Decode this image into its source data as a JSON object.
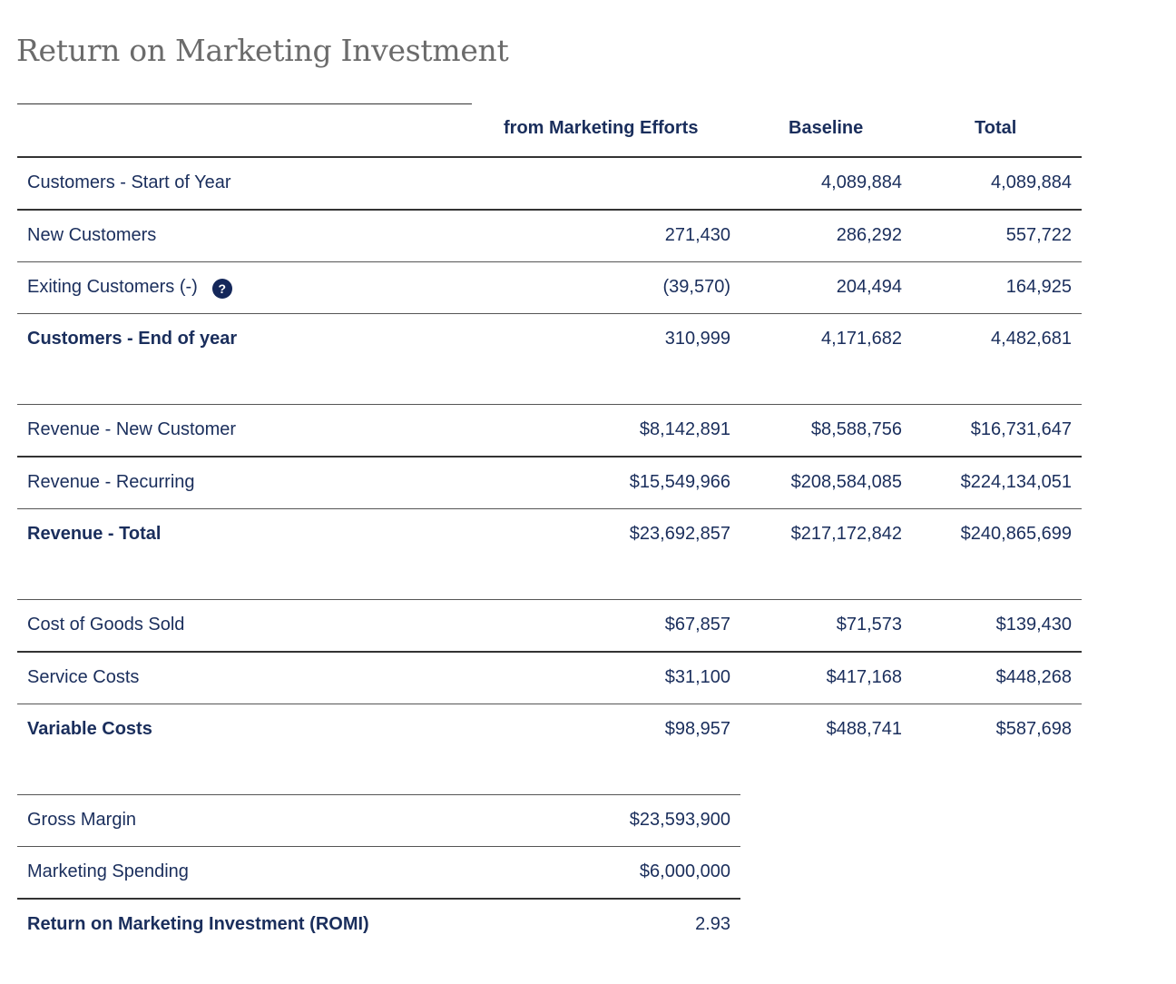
{
  "title": "Return on Marketing Investment",
  "columns": {
    "marketing": "from Marketing Efforts",
    "baseline": "Baseline",
    "total": "Total"
  },
  "customers": {
    "start": {
      "label": "Customers - Start of Year",
      "marketing": "",
      "baseline": "4,089,884",
      "total": "4,089,884"
    },
    "new": {
      "label": "New Customers",
      "marketing": "271,430",
      "baseline": "286,292",
      "total": "557,722"
    },
    "exiting": {
      "label": "Exiting Customers (-)",
      "help_icon": "?",
      "marketing": "(39,570)",
      "baseline": "204,494",
      "total": "164,925"
    },
    "end": {
      "label": "Customers - End of year",
      "marketing": "310,999",
      "baseline": "4,171,682",
      "total": "4,482,681"
    }
  },
  "revenue": {
    "new": {
      "label": "Revenue - New Customer",
      "marketing": "$8,142,891",
      "baseline": "$8,588,756",
      "total": "$16,731,647"
    },
    "recurring": {
      "label": "Revenue - Recurring",
      "marketing": "$15,549,966",
      "baseline": "$208,584,085",
      "total": "$224,134,051"
    },
    "total": {
      "label": "Revenue - Total",
      "marketing": "$23,692,857",
      "baseline": "$217,172,842",
      "total": "$240,865,699"
    }
  },
  "costs": {
    "cogs": {
      "label": "Cost of Goods Sold",
      "marketing": "$67,857",
      "baseline": "$71,573",
      "total": "$139,430"
    },
    "service": {
      "label": "Service Costs",
      "marketing": "$31,100",
      "baseline": "$417,168",
      "total": "$448,268"
    },
    "variable": {
      "label": "Variable Costs",
      "marketing": "$98,957",
      "baseline": "$488,741",
      "total": "$587,698"
    }
  },
  "summary": {
    "gross_margin": {
      "label": "Gross Margin",
      "value": "$23,593,900"
    },
    "marketing_spending": {
      "label": "Marketing Spending",
      "value": "$6,000,000"
    },
    "romi": {
      "label": "Return on Marketing Investment (ROMI)",
      "value": "2.93"
    }
  },
  "colors": {
    "text": "#1a2e5c",
    "title": "#6b6b6b",
    "help_icon_bg": "#14275a"
  }
}
